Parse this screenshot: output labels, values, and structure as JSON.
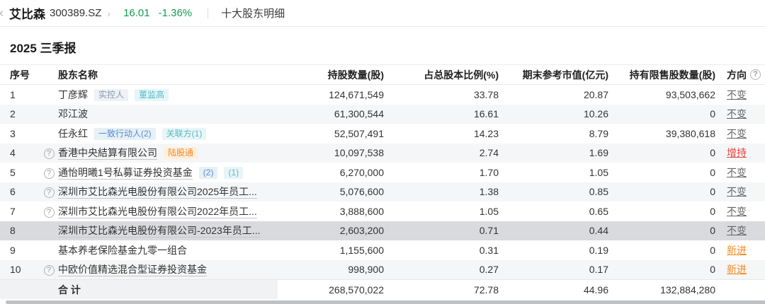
{
  "colors": {
    "green": "#129c50",
    "red": "#e9433c",
    "orange": "#f08c1f"
  },
  "nav": {
    "back_icon": "‹",
    "stock_name": "艾比森",
    "stock_code": "300389.SZ",
    "chevron": "›",
    "price": "16.01",
    "change_pct": "-1.36%",
    "page_title": "十大股东明细"
  },
  "section": {
    "report_title": "2025 三季报"
  },
  "table": {
    "headers": {
      "index": "序号",
      "name": "股东名称",
      "shares": "持股数量(股)",
      "pct": "占总股本比例(%)",
      "market_value": "期末参考市值(亿元)",
      "restricted": "持有限售股数量(股)",
      "direction": "方向",
      "direction_help_icon": "?"
    },
    "rows": [
      {
        "index": "1",
        "help": false,
        "link": false,
        "name": "丁彦辉",
        "badges": [
          {
            "text": "实控人",
            "type": "gray"
          },
          {
            "text": "董监高",
            "type": "teal"
          }
        ],
        "shares": "124,671,549",
        "pct": "33.78",
        "market_value": "20.87",
        "restricted": "93,503,662",
        "direction": {
          "text": "不变",
          "type": "unchanged"
        },
        "zebra": false,
        "highlight": false
      },
      {
        "index": "2",
        "help": false,
        "link": false,
        "name": "邓江波",
        "badges": [],
        "shares": "61,300,544",
        "pct": "16.61",
        "market_value": "10.26",
        "restricted": "0",
        "direction": {
          "text": "不变",
          "type": "unchanged"
        },
        "zebra": true,
        "highlight": false
      },
      {
        "index": "3",
        "help": false,
        "link": false,
        "name": "任永红",
        "badges": [
          {
            "text": "一致行动人(2)",
            "type": "blue"
          },
          {
            "text": "关联方(1)",
            "type": "teal"
          }
        ],
        "shares": "52,507,491",
        "pct": "14.23",
        "market_value": "8.79",
        "restricted": "39,380,618",
        "direction": {
          "text": "不变",
          "type": "unchanged"
        },
        "zebra": false,
        "highlight": false
      },
      {
        "index": "4",
        "help": true,
        "link": true,
        "name": "香港中央結算有限公司",
        "badges": [
          {
            "text": "陆股通",
            "type": "orange"
          }
        ],
        "shares": "10,097,538",
        "pct": "2.74",
        "market_value": "1.69",
        "restricted": "0",
        "direction": {
          "text": "增持",
          "type": "increase"
        },
        "zebra": true,
        "highlight": false
      },
      {
        "index": "5",
        "help": true,
        "link": true,
        "name": "通怡明曦1号私募证券投资基金",
        "badges": [
          {
            "text": "(2)",
            "type": "blue"
          },
          {
            "text": "(1)",
            "type": "teal"
          }
        ],
        "shares": "6,270,000",
        "pct": "1.70",
        "market_value": "1.05",
        "restricted": "0",
        "direction": {
          "text": "不变",
          "type": "unchanged"
        },
        "zebra": false,
        "highlight": false
      },
      {
        "index": "6",
        "help": true,
        "link": true,
        "name": "深圳市艾比森光电股份有限公司2025年员工...",
        "badges": [],
        "shares": "5,076,600",
        "pct": "1.38",
        "market_value": "0.85",
        "restricted": "0",
        "direction": {
          "text": "不变",
          "type": "unchanged"
        },
        "zebra": true,
        "highlight": false
      },
      {
        "index": "7",
        "help": true,
        "link": true,
        "name": "深圳市艾比森光电股份有限公司2022年员工...",
        "badges": [],
        "shares": "3,888,600",
        "pct": "1.05",
        "market_value": "0.65",
        "restricted": "0",
        "direction": {
          "text": "不变",
          "type": "unchanged"
        },
        "zebra": false,
        "highlight": false
      },
      {
        "index": "8",
        "help": false,
        "link": true,
        "name": "深圳市艾比森光电股份有限公司-2023年员工...",
        "badges": [],
        "shares": "2,603,200",
        "pct": "0.71",
        "market_value": "0.44",
        "restricted": "0",
        "direction": {
          "text": "不变",
          "type": "unchanged"
        },
        "zebra": false,
        "highlight": true
      },
      {
        "index": "9",
        "help": false,
        "link": false,
        "name": "基本养老保险基金九零一组合",
        "badges": [],
        "shares": "1,155,600",
        "pct": "0.31",
        "market_value": "0.19",
        "restricted": "0",
        "direction": {
          "text": "新进",
          "type": "new"
        },
        "zebra": false,
        "highlight": false
      },
      {
        "index": "10",
        "help": true,
        "link": true,
        "name": "中欧价值精选混合型证券投资基金",
        "badges": [],
        "shares": "998,900",
        "pct": "0.27",
        "market_value": "0.17",
        "restricted": "0",
        "direction": {
          "text": "新进",
          "type": "new"
        },
        "zebra": true,
        "highlight": false
      }
    ],
    "footer": {
      "label": "合 计",
      "shares": "268,570,022",
      "pct": "72.78",
      "market_value": "44.96",
      "restricted": "132,884,280"
    }
  }
}
